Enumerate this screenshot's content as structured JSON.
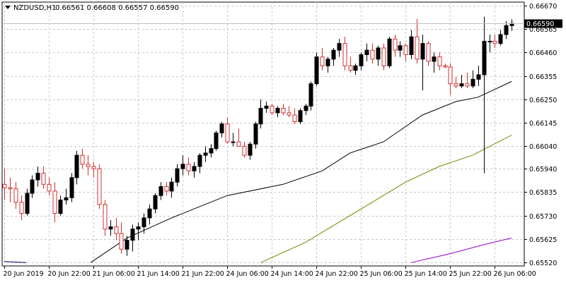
{
  "chart_data": {
    "type": "candlestick",
    "header": {
      "symbol_tf": "NZDUSD,H1",
      "ohlc": "0.66561 0.66608 0.66557 0.66590"
    },
    "y_ticks": [
      "0.66670",
      "0.66565",
      "0.66460",
      "0.66355",
      "0.66250",
      "0.66145",
      "0.66040",
      "0.65940",
      "0.65835",
      "0.65730",
      "0.65625",
      "0.65520"
    ],
    "y_tick_values": [
      0.6667,
      0.66565,
      0.6646,
      0.66355,
      0.6625,
      0.66145,
      0.6604,
      0.6594,
      0.65835,
      0.6573,
      0.65625,
      0.6552
    ],
    "x_ticks": [
      "20 Jun 2019",
      "20 Jun 22:00",
      "21 Jun 06:00",
      "21 Jun 14:00",
      "21 Jun 22:00",
      "24 Jun 06:00",
      "24 Jun 14:00",
      "24 Jun 22:00",
      "25 Jun 06:00",
      "25 Jun 14:00",
      "25 Jun 22:00",
      "26 Jun 06:00"
    ],
    "x_tick_bars": [
      0,
      8,
      16,
      24,
      32,
      40,
      48,
      56,
      64,
      72,
      80,
      88
    ],
    "price_range": [
      0.65505,
      0.66685
    ],
    "current_price": 0.6659,
    "current_price_label": "0.66590",
    "grid": "dashed",
    "candles": [
      [
        0.6587,
        0.6594,
        0.658,
        0.65855
      ],
      [
        0.65855,
        0.659,
        0.6579,
        0.6585
      ],
      [
        0.6585,
        0.6588,
        0.6576,
        0.6579
      ],
      [
        0.6579,
        0.6582,
        0.6571,
        0.6574
      ],
      [
        0.6574,
        0.6585,
        0.6573,
        0.6583
      ],
      [
        0.6583,
        0.6591,
        0.6581,
        0.6589
      ],
      [
        0.6589,
        0.6595,
        0.6586,
        0.6592
      ],
      [
        0.6592,
        0.6595,
        0.6585,
        0.6587
      ],
      [
        0.6587,
        0.659,
        0.6582,
        0.6584
      ],
      [
        0.6584,
        0.6588,
        0.657,
        0.6574
      ],
      [
        0.6574,
        0.6582,
        0.6573,
        0.658
      ],
      [
        0.658,
        0.6585,
        0.6578,
        0.6581
      ],
      [
        0.6581,
        0.6592,
        0.6579,
        0.659
      ],
      [
        0.659,
        0.6602,
        0.6587,
        0.66
      ],
      [
        0.66,
        0.6603,
        0.6594,
        0.6596
      ],
      [
        0.6596,
        0.66,
        0.6591,
        0.6595
      ],
      [
        0.6595,
        0.6597,
        0.659,
        0.6594
      ],
      [
        0.6594,
        0.6596,
        0.6576,
        0.6578
      ],
      [
        0.6578,
        0.658,
        0.6564,
        0.6567
      ],
      [
        0.6567,
        0.6571,
        0.6564,
        0.6568
      ],
      [
        0.6568,
        0.6572,
        0.6562,
        0.6565
      ],
      [
        0.6565,
        0.657,
        0.6556,
        0.6558
      ],
      [
        0.6558,
        0.6564,
        0.6555,
        0.6562
      ],
      [
        0.6562,
        0.6569,
        0.6557,
        0.6567
      ],
      [
        0.6567,
        0.657,
        0.6562,
        0.6568
      ],
      [
        0.6568,
        0.6574,
        0.6565,
        0.6572
      ],
      [
        0.6572,
        0.6578,
        0.6569,
        0.6576
      ],
      [
        0.6576,
        0.6583,
        0.6574,
        0.6582
      ],
      [
        0.6582,
        0.6588,
        0.658,
        0.6586
      ],
      [
        0.6586,
        0.6588,
        0.6582,
        0.6584
      ],
      [
        0.6584,
        0.659,
        0.6581,
        0.6588
      ],
      [
        0.6588,
        0.6596,
        0.6586,
        0.6594
      ],
      [
        0.6594,
        0.66,
        0.6591,
        0.6596
      ],
      [
        0.6596,
        0.6599,
        0.6591,
        0.6593
      ],
      [
        0.6593,
        0.6597,
        0.659,
        0.6595
      ],
      [
        0.6595,
        0.6601,
        0.6592,
        0.66
      ],
      [
        0.66,
        0.6604,
        0.6597,
        0.6601
      ],
      [
        0.6601,
        0.6605,
        0.6599,
        0.6603
      ],
      [
        0.6603,
        0.6611,
        0.6602,
        0.661
      ],
      [
        0.661,
        0.6615,
        0.6608,
        0.6614
      ],
      [
        0.6614,
        0.6617,
        0.6605,
        0.6606
      ],
      [
        0.6606,
        0.661,
        0.6604,
        0.6606
      ],
      [
        0.6606,
        0.6612,
        0.6604,
        0.6604
      ],
      [
        0.6604,
        0.6606,
        0.6599,
        0.66
      ],
      [
        0.66,
        0.6606,
        0.6598,
        0.6605
      ],
      [
        0.6605,
        0.6615,
        0.6603,
        0.6614
      ],
      [
        0.6614,
        0.6625,
        0.6612,
        0.6621
      ],
      [
        0.6621,
        0.6624,
        0.6619,
        0.6622
      ],
      [
        0.6622,
        0.6623,
        0.6618,
        0.6619
      ],
      [
        0.6619,
        0.6622,
        0.6617,
        0.6621
      ],
      [
        0.6621,
        0.6623,
        0.6618,
        0.6619
      ],
      [
        0.6619,
        0.6622,
        0.6617,
        0.6618
      ],
      [
        0.6618,
        0.6621,
        0.6614,
        0.6615
      ],
      [
        0.6615,
        0.6621,
        0.6614,
        0.662
      ],
      [
        0.662,
        0.6623,
        0.6618,
        0.6622
      ],
      [
        0.6622,
        0.6633,
        0.662,
        0.6632
      ],
      [
        0.6632,
        0.6646,
        0.6631,
        0.6644
      ],
      [
        0.6644,
        0.6648,
        0.6638,
        0.664
      ],
      [
        0.664,
        0.6644,
        0.6637,
        0.6643
      ],
      [
        0.6643,
        0.6648,
        0.664,
        0.6647
      ],
      [
        0.6647,
        0.6652,
        0.6644,
        0.665
      ],
      [
        0.665,
        0.6653,
        0.6638,
        0.664
      ],
      [
        0.664,
        0.6644,
        0.6637,
        0.6638
      ],
      [
        0.6638,
        0.6641,
        0.6636,
        0.664
      ],
      [
        0.664,
        0.6646,
        0.6638,
        0.6645
      ],
      [
        0.6645,
        0.665,
        0.6642,
        0.6647
      ],
      [
        0.6647,
        0.665,
        0.6641,
        0.6643
      ],
      [
        0.6643,
        0.6649,
        0.664,
        0.6648
      ],
      [
        0.6648,
        0.665,
        0.6638,
        0.664
      ],
      [
        0.664,
        0.6653,
        0.6639,
        0.6652
      ],
      [
        0.6652,
        0.6654,
        0.6644,
        0.6647
      ],
      [
        0.6647,
        0.6651,
        0.6644,
        0.6649
      ],
      [
        0.6649,
        0.665,
        0.6642,
        0.6645
      ],
      [
        0.6645,
        0.6656,
        0.6643,
        0.6653
      ],
      [
        0.6653,
        0.6661,
        0.6641,
        0.6643
      ],
      [
        0.6643,
        0.6654,
        0.6629,
        0.665
      ],
      [
        0.665,
        0.6651,
        0.664,
        0.6642
      ],
      [
        0.6642,
        0.6646,
        0.6637,
        0.6644
      ],
      [
        0.6644,
        0.6646,
        0.6638,
        0.664
      ],
      [
        0.664,
        0.6641,
        0.6639,
        0.66395
      ],
      [
        0.66395,
        0.6641,
        0.6627,
        0.6632
      ],
      [
        0.6632,
        0.6635,
        0.663,
        0.6631
      ],
      [
        0.6631,
        0.6636,
        0.663,
        0.6632
      ],
      [
        0.6632,
        0.6637,
        0.663,
        0.6631
      ],
      [
        0.6631,
        0.6638,
        0.663,
        0.6634
      ],
      [
        0.6634,
        0.664,
        0.6631,
        0.6636
      ],
      [
        0.6636,
        0.6662,
        0.6592,
        0.6651
      ],
      [
        0.6651,
        0.6654,
        0.6646,
        0.6651
      ],
      [
        0.6651,
        0.6654,
        0.6648,
        0.665
      ],
      [
        0.665,
        0.6656,
        0.6649,
        0.6654
      ],
      [
        0.6654,
        0.666,
        0.6652,
        0.6658
      ],
      [
        0.6658,
        0.66608,
        0.66557,
        0.6659
      ]
    ],
    "ma_series": [
      {
        "color": "#000000",
        "points": [
          [
            15.5,
            0.6552
          ],
          [
            22,
            0.6563
          ],
          [
            30,
            0.6572
          ],
          [
            40,
            0.6582
          ],
          [
            50,
            0.6587
          ],
          [
            57,
            0.6593
          ],
          [
            62,
            0.6601
          ],
          [
            68,
            0.6606
          ],
          [
            75,
            0.6618
          ],
          [
            81,
            0.6624
          ],
          [
            85,
            0.6626
          ],
          [
            91,
            0.6633
          ]
        ]
      },
      {
        "color": "#808000",
        "points": [
          [
            46,
            0.6552
          ],
          [
            54,
            0.6561
          ],
          [
            60,
            0.657
          ],
          [
            66,
            0.6579
          ],
          [
            72,
            0.6588
          ],
          [
            78,
            0.6595
          ],
          [
            84,
            0.66
          ],
          [
            91,
            0.6609
          ]
        ]
      },
      {
        "color": "#9400D3",
        "points": [
          [
            73,
            0.6552
          ],
          [
            80,
            0.6556
          ],
          [
            86,
            0.656
          ],
          [
            91,
            0.6563
          ]
        ]
      },
      {
        "color": "#000080",
        "points": [
          [
            0,
            0.65525
          ],
          [
            4,
            0.6552
          ]
        ]
      }
    ]
  }
}
